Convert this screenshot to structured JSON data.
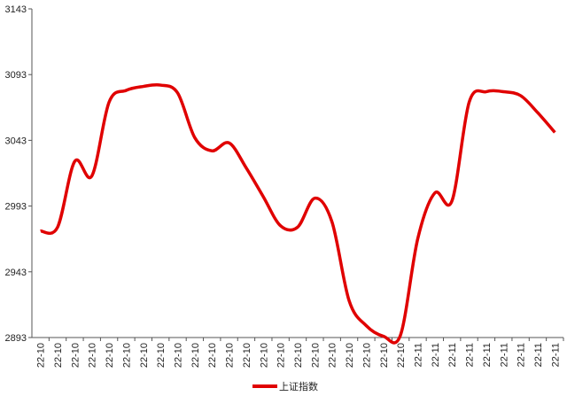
{
  "chart_data": {
    "type": "line",
    "categories": [
      "22-10",
      "22-10",
      "22-10",
      "22-10",
      "22-10",
      "22-10",
      "22-10",
      "22-10",
      "22-10",
      "22-10",
      "22-10",
      "22-10",
      "22-10",
      "22-10",
      "22-10",
      "22-10",
      "22-10",
      "22-10",
      "22-10",
      "22-10",
      "22-10",
      "22-10",
      "22-11",
      "22-11",
      "22-11",
      "22-11",
      "22-11",
      "22-11",
      "22-11",
      "22-11",
      "22-11"
    ],
    "series": [
      {
        "name": "上证指数",
        "color": "#e00000",
        "values": [
          2974,
          2977,
          3027,
          3016,
          3072,
          3081,
          3084,
          3085,
          3079,
          3045,
          3035,
          3041,
          3022,
          3000,
          2978,
          2977,
          2999,
          2981,
          2921,
          2902,
          2894,
          2895,
          2968,
          3003,
          2997,
          3072,
          3080,
          3080,
          3077,
          3064,
          3049
        ]
      }
    ],
    "ylim": [
      2893,
      3143
    ],
    "yticks": [
      2893,
      2943,
      2993,
      3043,
      3093,
      3143
    ],
    "legend": "bottom"
  }
}
